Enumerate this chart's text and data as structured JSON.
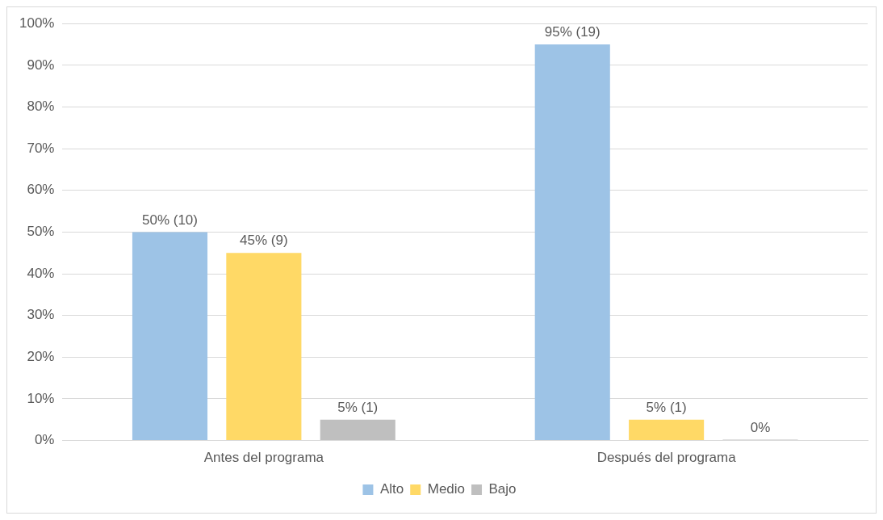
{
  "chart_data": {
    "type": "bar",
    "categories": [
      "Antes del programa",
      "Después del programa"
    ],
    "series": [
      {
        "name": "Alto",
        "color": "#9dc3e6",
        "values": [
          50,
          95
        ],
        "value_labels": [
          "50% (10)",
          "95% (19)"
        ]
      },
      {
        "name": "Medio",
        "color": "#ffd966",
        "values": [
          45,
          5
        ],
        "value_labels": [
          "45% (9)",
          "5% (1)"
        ]
      },
      {
        "name": "Bajo",
        "color": "#bfbfbf",
        "values": [
          5,
          0
        ],
        "value_labels": [
          "5% (1)",
          "0%"
        ]
      }
    ],
    "ylim": [
      0,
      100
    ],
    "yticks": [
      {
        "value": 0,
        "label": "0%"
      },
      {
        "value": 10,
        "label": "10%"
      },
      {
        "value": 20,
        "label": "20%"
      },
      {
        "value": 30,
        "label": "30%"
      },
      {
        "value": 40,
        "label": "40%"
      },
      {
        "value": 50,
        "label": "50%"
      },
      {
        "value": 60,
        "label": "60%"
      },
      {
        "value": 70,
        "label": "70%"
      },
      {
        "value": 80,
        "label": "80%"
      },
      {
        "value": 90,
        "label": "90%"
      },
      {
        "value": 100,
        "label": "100%"
      }
    ],
    "grid": "y",
    "legend": "bottom"
  }
}
